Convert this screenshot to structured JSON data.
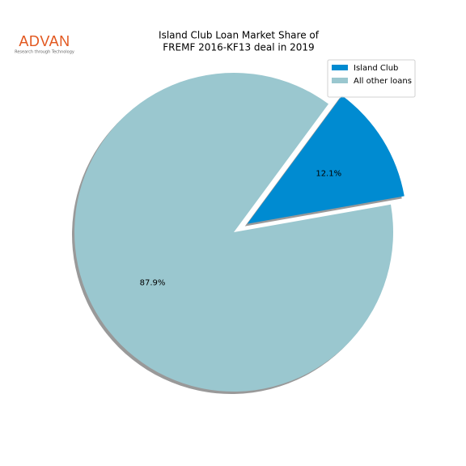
{
  "chart_data": {
    "type": "pie",
    "title": [
      "Island Club Loan Market Share of",
      "FREMF 2016-KF13 deal in 2019"
    ],
    "logo": {
      "name": "ADVAN",
      "tagline": "Research through Technology"
    },
    "categories": [
      "Island Club",
      "All other loans"
    ],
    "values": [
      12.1,
      87.9
    ],
    "value_labels": [
      "12.1%",
      "87.9%"
    ],
    "colors": [
      "#008bd1",
      "#9ac7cf"
    ],
    "legend": "upper right",
    "shadow": true
  }
}
